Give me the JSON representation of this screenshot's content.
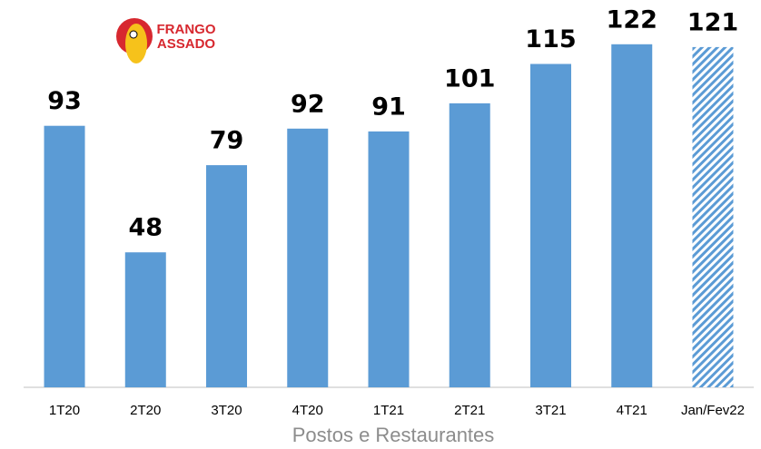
{
  "logo": {
    "lines": [
      "FRANGO",
      "ASSADO"
    ]
  },
  "chart_data": {
    "type": "bar",
    "x_label": "Postos e Restaurantes",
    "categories": [
      "1T20",
      "2T20",
      "3T20",
      "4T20",
      "1T21",
      "2T21",
      "3T21",
      "4T21",
      "Jan/Fev22"
    ],
    "values": [
      93,
      48,
      79,
      92,
      91,
      101,
      115,
      122,
      121
    ],
    "patterns": [
      "solid",
      "solid",
      "solid",
      "solid",
      "solid",
      "solid",
      "solid",
      "solid",
      "hatched"
    ],
    "color": "#5b9bd5",
    "ylim": [
      0,
      130
    ]
  }
}
